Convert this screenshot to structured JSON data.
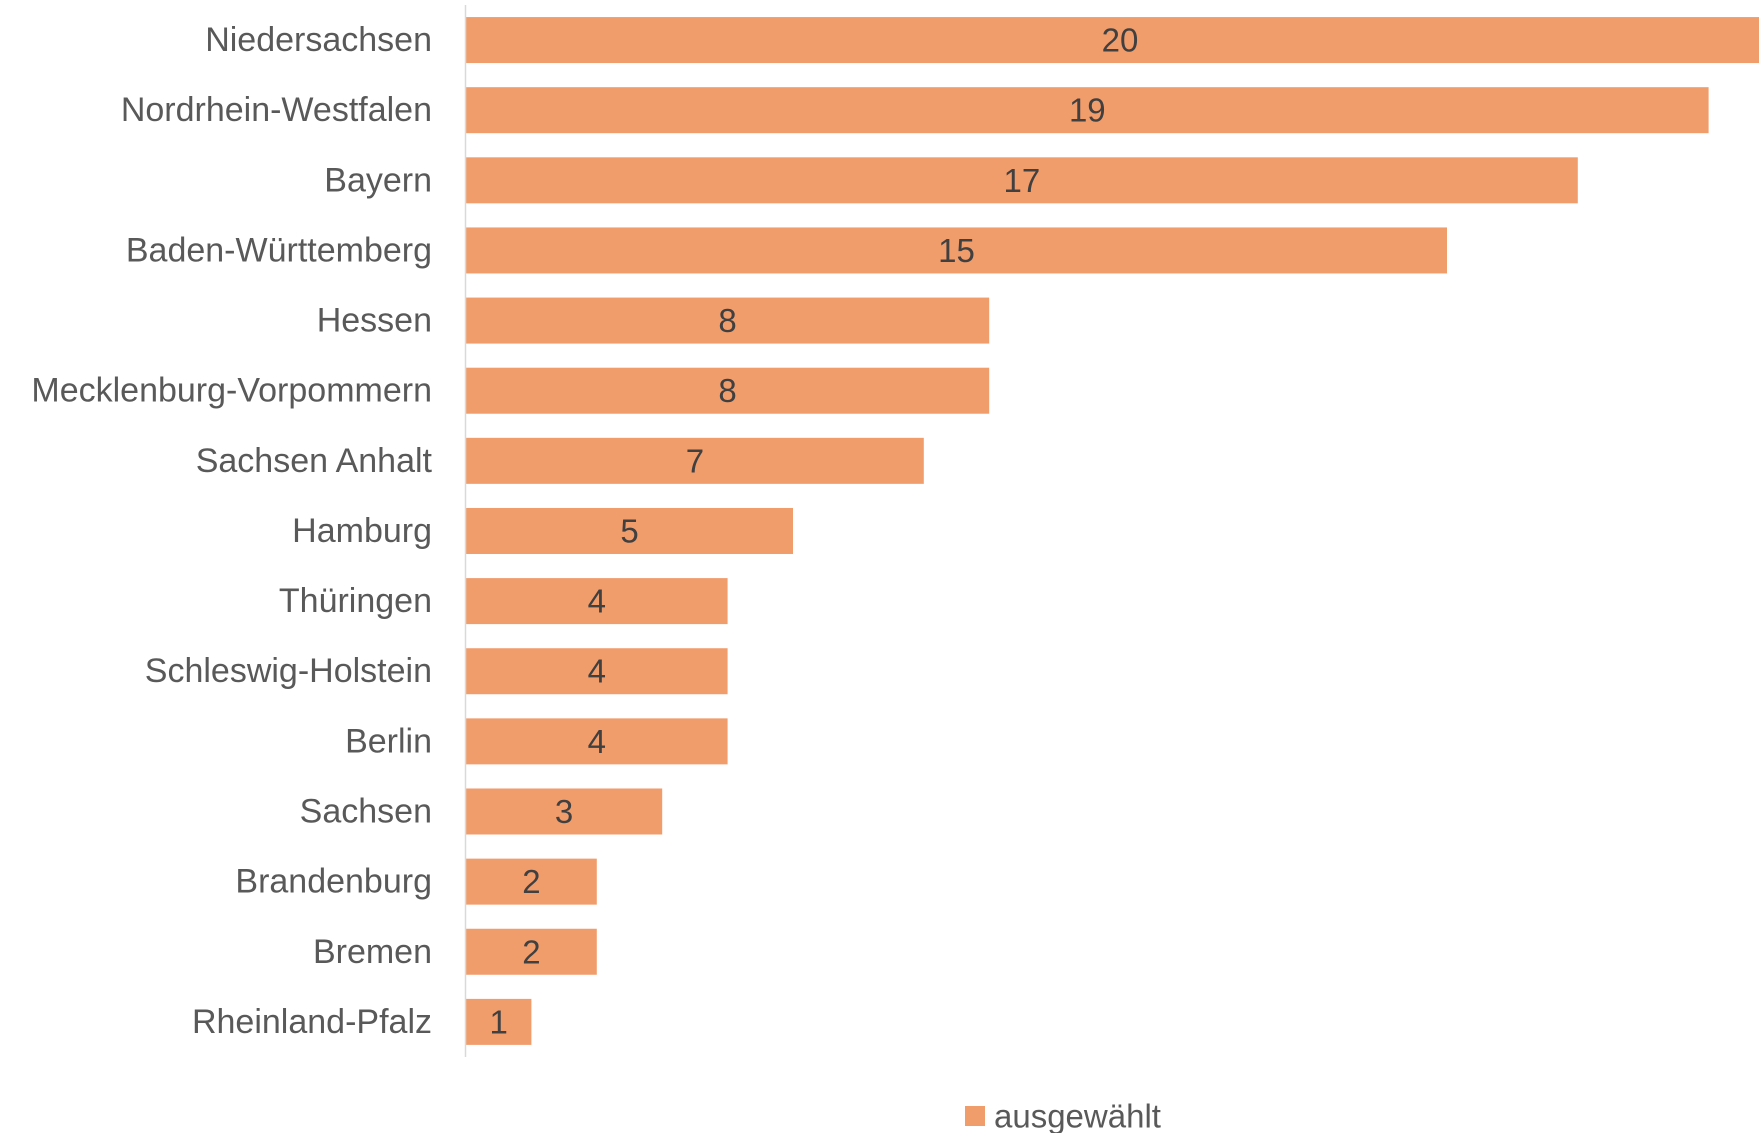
{
  "chart_data": {
    "type": "bar",
    "orientation": "horizontal",
    "categories": [
      "Niedersachsen",
      "Nordrhein-Westfalen",
      "Bayern",
      "Baden-Württemberg",
      "Hessen",
      "Mecklenburg-Vorpommern",
      "Sachsen Anhalt",
      "Hamburg",
      "Thüringen",
      "Schleswig-Holstein",
      "Berlin",
      "Sachsen",
      "Brandenburg",
      "Bremen",
      "Rheinland-Pfalz"
    ],
    "series": [
      {
        "name": "ausgewählt",
        "values": [
          20,
          19,
          17,
          15,
          8,
          8,
          7,
          5,
          4,
          4,
          4,
          3,
          2,
          2,
          1
        ],
        "color": "#F19C6B"
      }
    ],
    "data_labels": true,
    "value_axis_visible": false,
    "grid": false,
    "legend": "bottom",
    "colors": {
      "bar": "#F19C6B",
      "category_text": "#595959",
      "data_label_text": "#404040",
      "axis_line": "#D9D9D9"
    }
  }
}
